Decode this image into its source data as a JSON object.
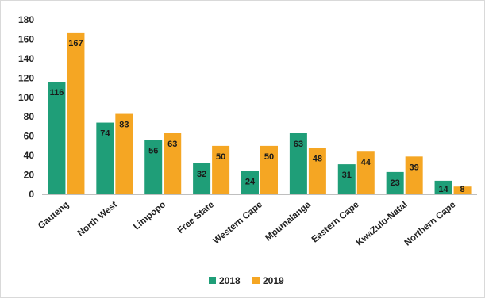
{
  "chart_data": {
    "type": "bar",
    "title": "",
    "xlabel": "",
    "ylabel": "",
    "ylim": [
      0,
      180
    ],
    "yticks": [
      0,
      20,
      40,
      60,
      80,
      100,
      120,
      140,
      160,
      180
    ],
    "grid": false,
    "legend_position": "bottom",
    "categories": [
      "Gauteng",
      "North West",
      "Limpopo",
      "Free State",
      "Western Cape",
      "Mpumalanga",
      "Eastern Cape",
      "KwaZulu-Natal",
      "Northern Cape"
    ],
    "series": [
      {
        "name": "2018",
        "color": "#1f9e78",
        "values": [
          116,
          74,
          56,
          32,
          24,
          63,
          31,
          23,
          14
        ]
      },
      {
        "name": "2019",
        "color": "#f5a623",
        "values": [
          167,
          83,
          63,
          50,
          50,
          48,
          44,
          39,
          8
        ]
      }
    ]
  }
}
